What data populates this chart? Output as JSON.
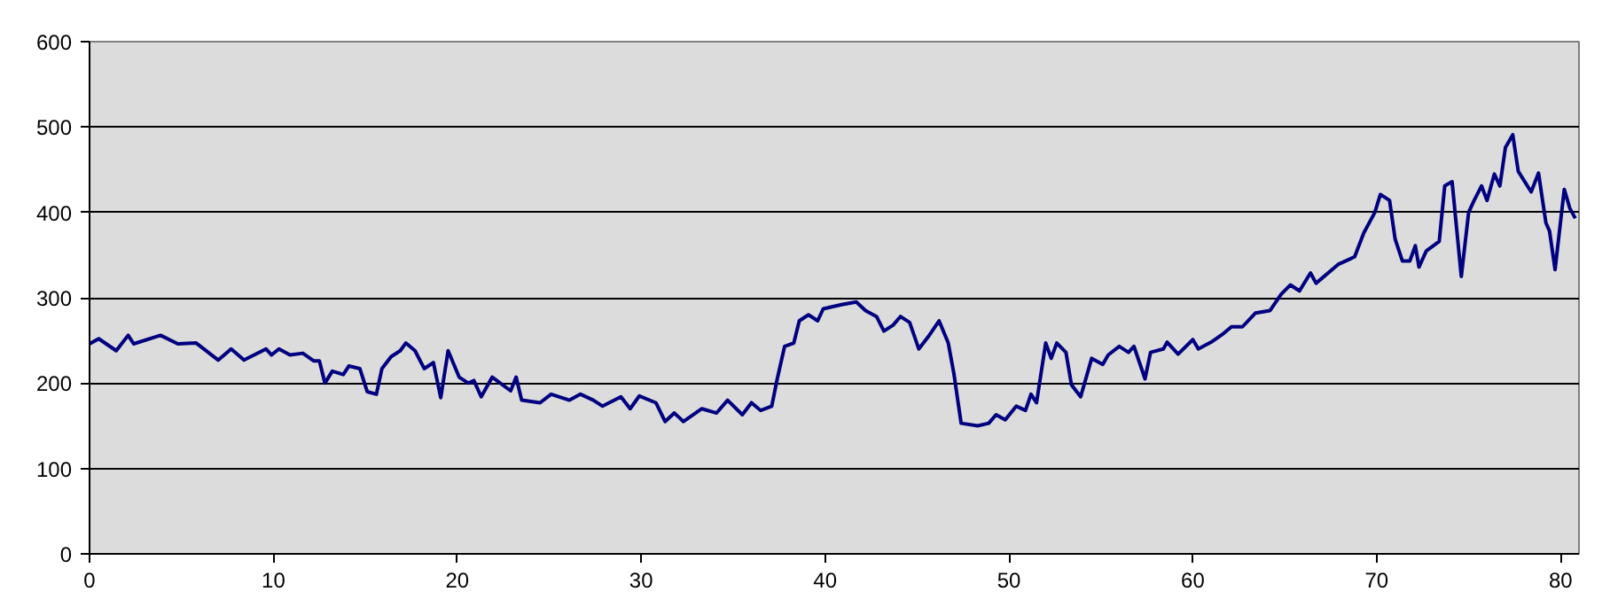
{
  "chart_data": {
    "type": "line",
    "x": [
      0,
      0.5,
      1.45,
      2.1,
      2.4,
      3.86,
      4.8,
      5.8,
      7.0,
      7.7,
      8.4,
      9.6,
      9.9,
      10.3,
      10.9,
      11.6,
      12.2,
      12.5,
      12.8,
      13.2,
      13.8,
      14.1,
      14.7,
      15.1,
      15.6,
      15.9,
      16.4,
      16.9,
      17.2,
      17.7,
      18.2,
      18.7,
      19.1,
      19.5,
      20.1,
      20.6,
      20.9,
      21.3,
      21.9,
      22.9,
      23.2,
      23.5,
      24.5,
      25.1,
      26.1,
      26.7,
      27.4,
      27.9,
      28.9,
      29.4,
      29.9,
      30.8,
      31.3,
      31.8,
      32.3,
      33.3,
      34.1,
      34.7,
      35.5,
      36.0,
      36.5,
      37.1,
      37.4,
      37.8,
      38.3,
      38.6,
      39.1,
      39.6,
      39.9,
      40.9,
      41.7,
      42.2,
      42.8,
      43.2,
      43.7,
      44.1,
      44.6,
      45.1,
      45.6,
      46.2,
      46.7,
      47.0,
      47.4,
      48.3,
      48.9,
      49.3,
      49.8,
      50.4,
      50.9,
      51.2,
      51.5,
      52.0,
      52.3,
      52.6,
      53.1,
      53.4,
      53.9,
      54.5,
      55.1,
      55.4,
      56.0,
      56.5,
      56.8,
      57.4,
      57.7,
      58.4,
      58.6,
      59.2,
      60.0,
      60.3,
      61.0,
      61.6,
      62.1,
      62.7,
      63.4,
      64.2,
      64.8,
      65.3,
      65.8,
      66.4,
      66.7,
      67.9,
      68.8,
      69.3,
      69.9,
      70.2,
      70.7,
      71.0,
      71.4,
      71.8,
      72.1,
      72.3,
      72.7,
      73.4,
      73.7,
      74.1,
      74.6,
      75.0,
      75.3,
      75.7,
      76.0,
      76.4,
      76.7,
      77.0,
      77.4,
      77.7,
      78.4,
      78.8,
      79.2,
      79.4,
      79.7,
      80.2,
      80.5,
      80.8
    ],
    "series": [
      {
        "color": "#000080",
        "values": [
          246,
          252,
          238,
          256,
          246,
          256,
          246,
          247,
          227,
          240,
          227,
          240,
          233,
          240,
          233,
          235,
          226,
          226,
          200,
          214,
          210,
          220,
          217,
          190,
          187,
          217,
          231,
          238,
          247,
          238,
          217,
          224,
          183,
          238,
          207,
          200,
          203,
          184,
          207,
          191,
          207,
          180,
          177,
          187,
          180,
          187,
          180,
          173,
          184,
          170,
          185,
          177,
          155,
          165,
          155,
          170,
          165,
          180,
          163,
          177,
          168,
          173,
          205,
          243,
          247,
          273,
          280,
          273,
          287,
          292,
          295,
          285,
          278,
          261,
          268,
          278,
          271,
          240,
          254,
          273,
          247,
          212,
          153,
          150,
          153,
          163,
          157,
          173,
          168,
          187,
          177,
          247,
          229,
          247,
          236,
          198,
          184,
          229,
          222,
          233,
          243,
          236,
          243,
          205,
          236,
          240,
          248,
          234,
          251,
          240,
          248,
          257,
          266,
          266,
          282,
          285,
          304,
          315,
          308,
          329,
          317,
          339,
          348,
          376,
          400,
          421,
          414,
          369,
          343,
          343,
          361,
          336,
          355,
          366,
          431,
          436,
          325,
          400,
          414,
          431,
          414,
          445,
          431,
          476,
          491,
          448,
          424,
          446,
          388,
          378,
          333,
          427,
          405,
          393
        ]
      }
    ],
    "xlim": [
      0,
      81
    ],
    "xticks": [
      0,
      10,
      20,
      30,
      40,
      50,
      60,
      70,
      80
    ],
    "ylim": [
      0,
      600
    ],
    "yticks": [
      0,
      100,
      200,
      300,
      400,
      500,
      600
    ],
    "grid": "y",
    "marker": "none",
    "line_style": "solid"
  }
}
